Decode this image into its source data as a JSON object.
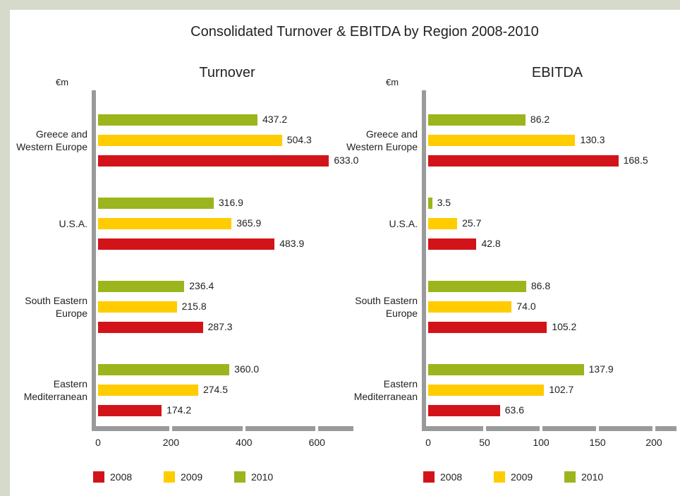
{
  "title": "Consolidated Turnover & EBITDA by Region 2008-2010",
  "chart_data": [
    {
      "type": "bar",
      "orientation": "horizontal",
      "title": "Turnover",
      "unit": "€m",
      "categories": [
        "Greece and Western Europe",
        "U.S.A.",
        "South Eastern Europe",
        "Eastern Mediterranean"
      ],
      "series": [
        {
          "name": "2008",
          "color": "#d2141a",
          "values": [
            633.0,
            483.9,
            287.3,
            174.2
          ],
          "value_labels": [
            "633.0",
            "483.9",
            "287.3",
            "174.2"
          ]
        },
        {
          "name": "2009",
          "color": "#ffcc00",
          "values": [
            504.3,
            365.9,
            215.8,
            274.5
          ],
          "value_labels": [
            "504.3",
            "365.9",
            "215.8",
            "274.5"
          ]
        },
        {
          "name": "2010",
          "color": "#9bb51c",
          "values": [
            437.2,
            316.9,
            236.4,
            360.0
          ],
          "value_labels": [
            "437.2",
            "316.9",
            "236.4",
            "360.0"
          ]
        }
      ],
      "xlim": [
        0,
        700
      ],
      "xticks": [
        0,
        200,
        400,
        600
      ]
    },
    {
      "type": "bar",
      "orientation": "horizontal",
      "title": "EBITDA",
      "unit": "€m",
      "categories": [
        "Greece and Western Europe",
        "U.S.A.",
        "South Eastern Europe",
        "Eastern Mediterranean"
      ],
      "series": [
        {
          "name": "2008",
          "color": "#d2141a",
          "values": [
            168.5,
            42.8,
            105.2,
            63.6
          ],
          "value_labels": [
            "168.5",
            "42.8",
            "105.2",
            "63.6"
          ]
        },
        {
          "name": "2009",
          "color": "#ffcc00",
          "values": [
            130.3,
            25.7,
            74.0,
            102.7
          ],
          "value_labels": [
            "130.3",
            "25.7",
            "74.0",
            "102.7"
          ]
        },
        {
          "name": "2010",
          "color": "#9bb51c",
          "values": [
            86.2,
            3.5,
            86.8,
            137.9
          ],
          "value_labels": [
            "86.2",
            "3.5",
            "86.8",
            "137.9"
          ]
        }
      ],
      "xlim": [
        0,
        220
      ],
      "xticks": [
        0,
        50,
        100,
        150,
        200
      ]
    }
  ]
}
